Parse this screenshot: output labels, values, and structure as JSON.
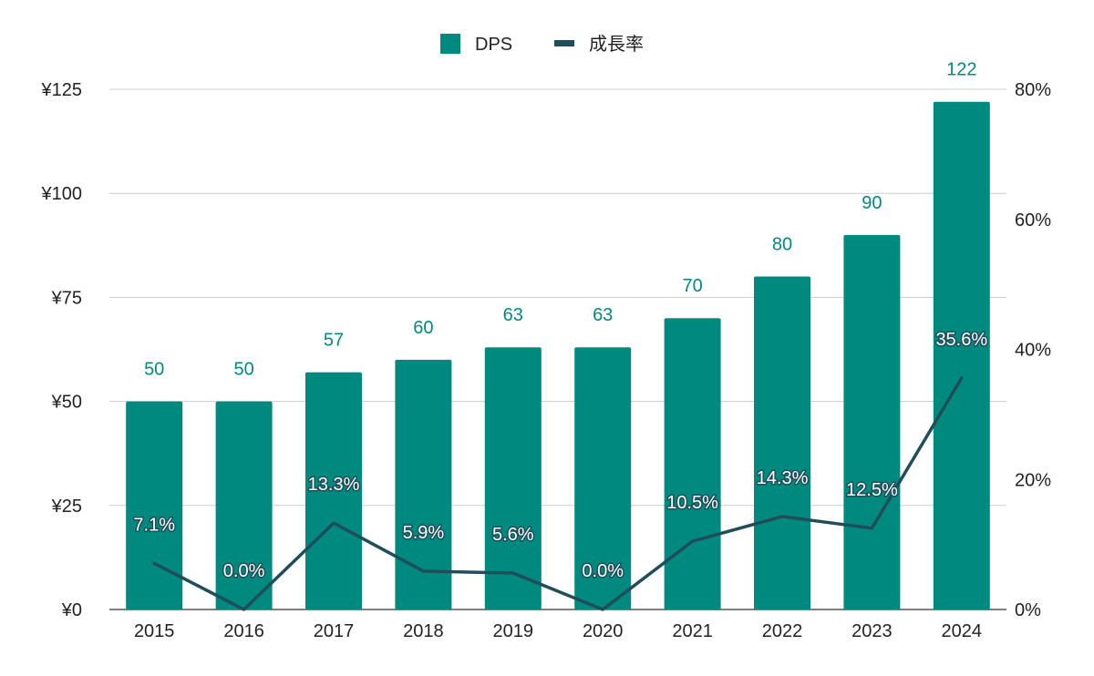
{
  "chart_data": {
    "type": "bar",
    "categories": [
      "2015",
      "2016",
      "2017",
      "2018",
      "2019",
      "2020",
      "2021",
      "2022",
      "2023",
      "2024"
    ],
    "series": [
      {
        "name": "DPS",
        "type": "bar",
        "axis": "left",
        "values": [
          50,
          50,
          57,
          60,
          63,
          63,
          70,
          80,
          90,
          122
        ],
        "labels": [
          "50",
          "50",
          "57",
          "60",
          "63",
          "63",
          "70",
          "80",
          "90",
          "122"
        ]
      },
      {
        "name": "成長率",
        "type": "line",
        "axis": "right",
        "values": [
          7.1,
          0.0,
          13.3,
          5.9,
          5.6,
          0.0,
          10.5,
          14.3,
          12.5,
          35.6
        ],
        "labels": [
          "7.1%",
          "0.0%",
          "13.3%",
          "5.9%",
          "5.6%",
          "0.0%",
          "10.5%",
          "14.3%",
          "12.5%",
          "35.6%"
        ]
      }
    ],
    "y_left": {
      "ylim": [
        0,
        125
      ],
      "ticks": [
        0,
        25,
        50,
        75,
        100,
        125
      ],
      "tick_labels": [
        "¥0",
        "¥25",
        "¥50",
        "¥75",
        "¥100",
        "¥125"
      ]
    },
    "y_right": {
      "ylim": [
        0,
        80
      ],
      "ticks": [
        0,
        20,
        40,
        60,
        80
      ],
      "tick_labels": [
        "0%",
        "20%",
        "40%",
        "60%",
        "80%"
      ]
    },
    "title": "",
    "xlabel": "",
    "ylabel": "",
    "grid": true,
    "legend": "top-center",
    "colors": {
      "bar": "#00897f",
      "line": "#1f4e5a",
      "bar_label": "#00897f",
      "grid": "#cccccc"
    }
  }
}
